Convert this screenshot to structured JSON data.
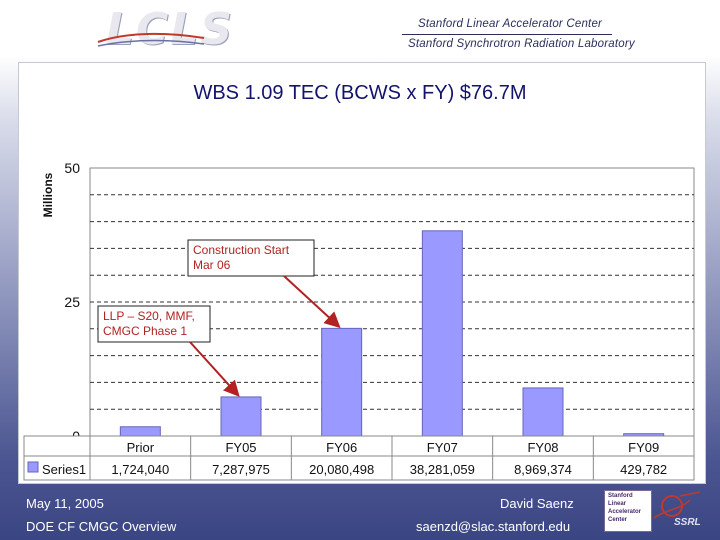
{
  "header": {
    "logo_text": "LCLS",
    "org_line1": "Stanford Linear Accelerator Center",
    "org_line2": "Stanford Synchrotron Radiation Laboratory"
  },
  "chart_data": {
    "type": "bar",
    "title": "WBS 1.09 TEC (BCWS x FY) $76.7M",
    "ylabel": "Millions",
    "ylim": [
      0,
      50
    ],
    "yticks": [
      0,
      25,
      50
    ],
    "grid": true,
    "categories": [
      "Prior",
      "FY05",
      "FY06",
      "FY07",
      "FY08",
      "FY09"
    ],
    "series": [
      {
        "name": "Series1",
        "values": [
          1724040,
          7287975,
          20080498,
          38281059,
          8969374,
          429782
        ],
        "value_labels": [
          "1,724,040",
          "7,287,975",
          "20,080,498",
          "38,281,059",
          "8,969,374",
          "429,782"
        ],
        "color": "#9999ff"
      }
    ],
    "data_table": true,
    "annotations": [
      {
        "text_lines": [
          "Construction Start",
          "Mar 06"
        ],
        "points_to": "FY06",
        "color": "#b22222"
      },
      {
        "text_lines": [
          "LLP – S20, MMF,",
          "CMGC Phase 1"
        ],
        "points_to": "FY05",
        "color": "#b22222"
      }
    ]
  },
  "footer": {
    "date": "May 11, 2005",
    "presenter": "David Saenz",
    "subtitle": "DOE CF CMGC Overview",
    "email": "saenzd@slac.stanford.edu",
    "badge_lines": [
      "Stanford",
      "Linear",
      "Accelerator",
      "Center"
    ],
    "badge_tag": "SSRL"
  }
}
